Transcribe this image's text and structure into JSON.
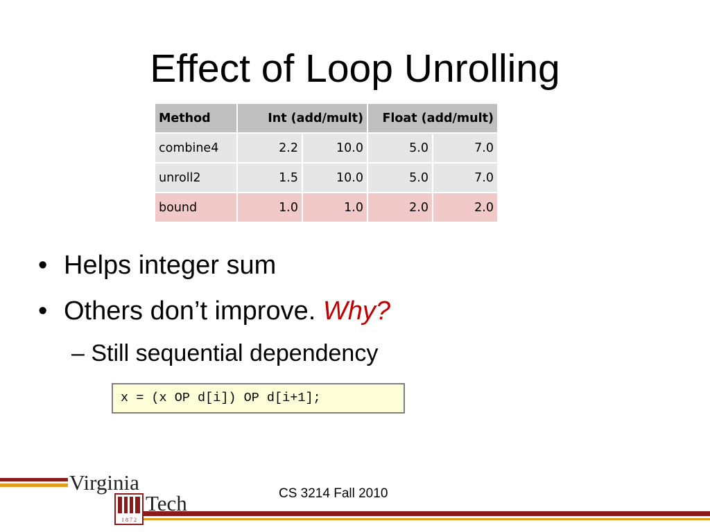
{
  "slide": {
    "title": "Effect of Loop Unrolling",
    "footer": "CS 3214 Fall 2010"
  },
  "table": {
    "headers": [
      "Method",
      "Int (add/mult)",
      "Float (add/mult)"
    ],
    "rows": [
      {
        "method": "combine4",
        "int_add": "2.2",
        "int_mult": "10.0",
        "float_add": "5.0",
        "float_mult": "7.0"
      },
      {
        "method": "unroll2",
        "int_add": "1.5",
        "int_mult": "10.0",
        "float_add": "5.0",
        "float_mult": "7.0"
      },
      {
        "method": "bound",
        "int_add": "1.0",
        "int_mult": "1.0",
        "float_add": "2.0",
        "float_mult": "2.0"
      }
    ],
    "colors": {
      "header_bg": "#c0c0c0",
      "row_bg": "#e6e6e6",
      "highlight_bg": "#f1c9c9"
    }
  },
  "bullets": [
    {
      "marker": "•",
      "text": "Helps integer sum"
    },
    {
      "marker": "•",
      "text": "Others don’t improve. ",
      "emphasis": "Why?"
    }
  ],
  "sub_bullet": {
    "marker": "–",
    "text": "Still sequential dependency"
  },
  "code": "x = (x OP d[i]) OP d[i+1];",
  "logo": {
    "line1": "Virginia",
    "line2": "Tech",
    "year_digits": "1 8 7 2"
  },
  "colors": {
    "emphasis": "#c00000",
    "maroon": "#8b1a1a",
    "orange": "#e39a1f",
    "code_bg": "#fdfdd8"
  }
}
